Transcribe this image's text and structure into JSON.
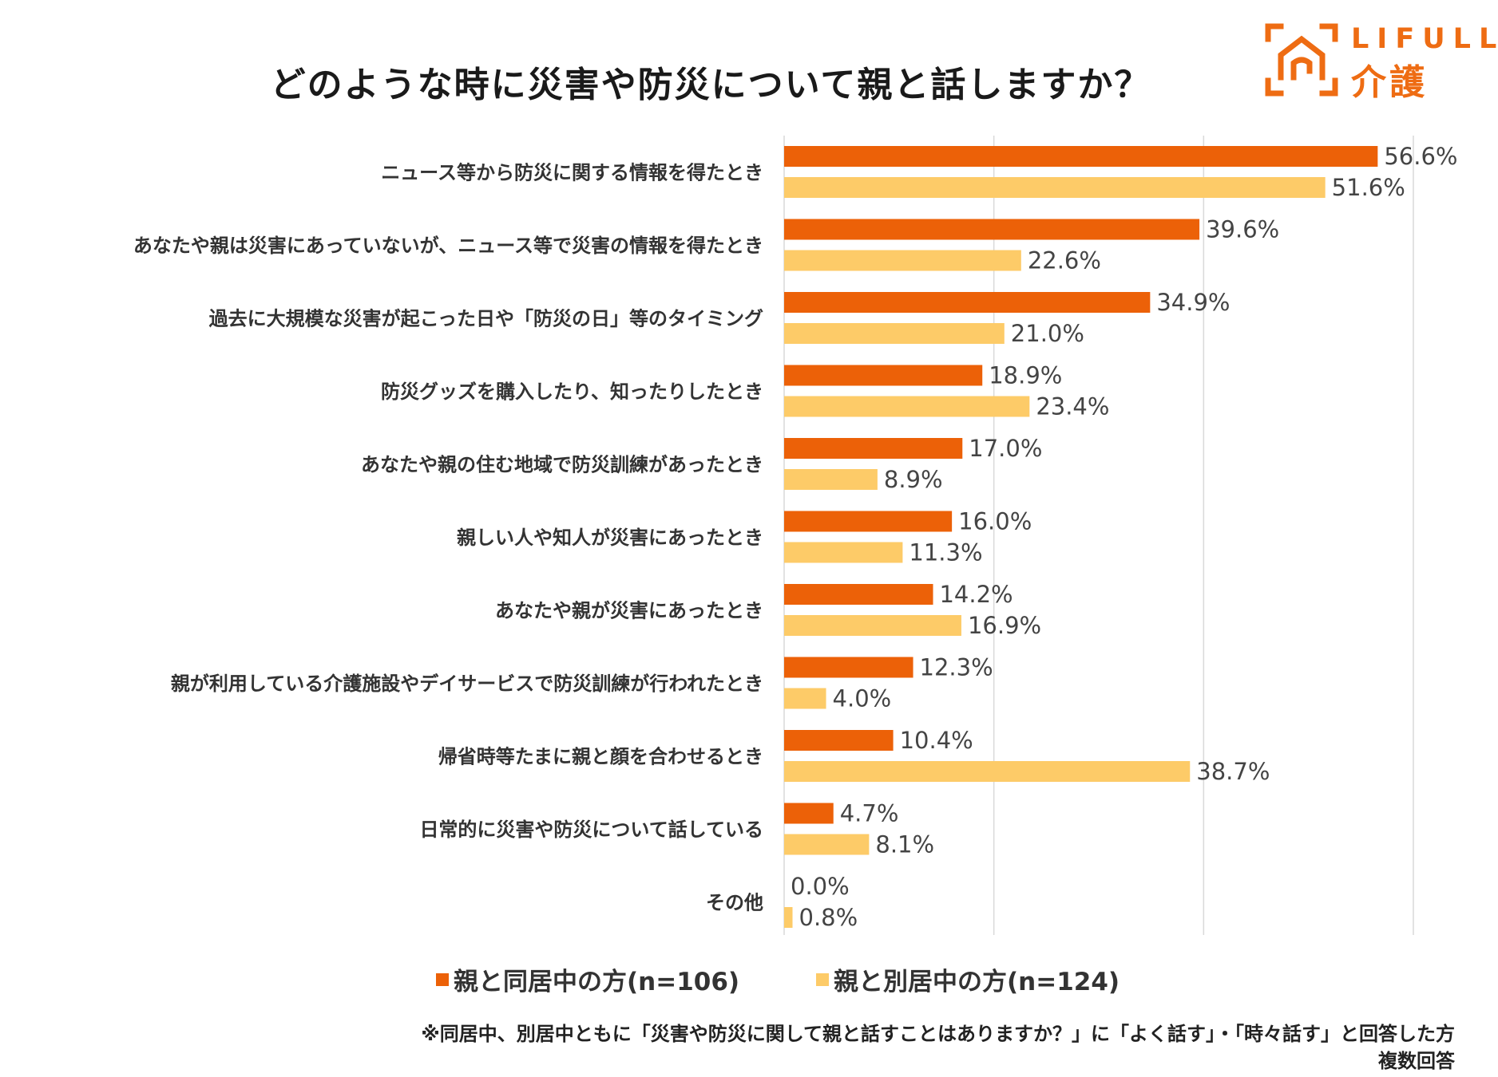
{
  "logo": {
    "brand": "LIFULL",
    "service": "介護",
    "color": "#ee6c13"
  },
  "chart_data": {
    "type": "bar",
    "orientation": "horizontal",
    "title": "どのような時に災害や防災について親と話しますか？",
    "categories": [
      "ニュース等から防災に関する情報を得たとき",
      "あなたや親は災害にあっていないが、ニュース等で災害の情報を得たとき",
      "過去に大規模な災害が起こった日や「防災の日」等のタイミング",
      "防災グッズを購入したり、知ったりしたとき",
      "あなたや親の住む地域で防災訓練があったとき",
      "親しい人や知人が災害にあったとき",
      "あなたや親が災害にあったとき",
      "親が利用している介護施設やデイサービスで防災訓練が行われたとき",
      "帰省時等たまに親と顔を合わせるとき",
      "日常的に災害や防災について話している",
      "その他"
    ],
    "series": [
      {
        "name": "親と同居中の方(n=106)",
        "color": "#ec6108",
        "values": [
          56.6,
          39.6,
          34.9,
          18.9,
          17.0,
          16.0,
          14.2,
          12.3,
          10.4,
          4.7,
          0.0
        ],
        "labels": [
          "56.6%",
          "39.6%",
          "34.9%",
          "18.9%",
          "17.0%",
          "16.0%",
          "14.2%",
          "12.3%",
          "10.4%",
          "4.7%",
          "0.0%"
        ]
      },
      {
        "name": "親と別居中の方(n=124)",
        "color": "#fdcb68",
        "values": [
          51.6,
          22.6,
          21.0,
          23.4,
          8.9,
          11.3,
          16.9,
          4.0,
          38.7,
          8.1,
          0.8
        ],
        "labels": [
          "51.6%",
          "22.6%",
          "21.0%",
          "23.4%",
          "8.9%",
          "11.3%",
          "16.9%",
          "4.0%",
          "38.7%",
          "8.1%",
          "0.8%"
        ]
      }
    ],
    "xlim": [
      0,
      60
    ],
    "gridlines": [
      0,
      20,
      40,
      60
    ],
    "legend_position": "bottom"
  },
  "notes": {
    "footnote": "※同居中、別居中ともに「災害や防災に関して親と話すことはありますか？」に「よく話す」・「時々話す」と回答した方",
    "answer_type": "複数回答"
  }
}
